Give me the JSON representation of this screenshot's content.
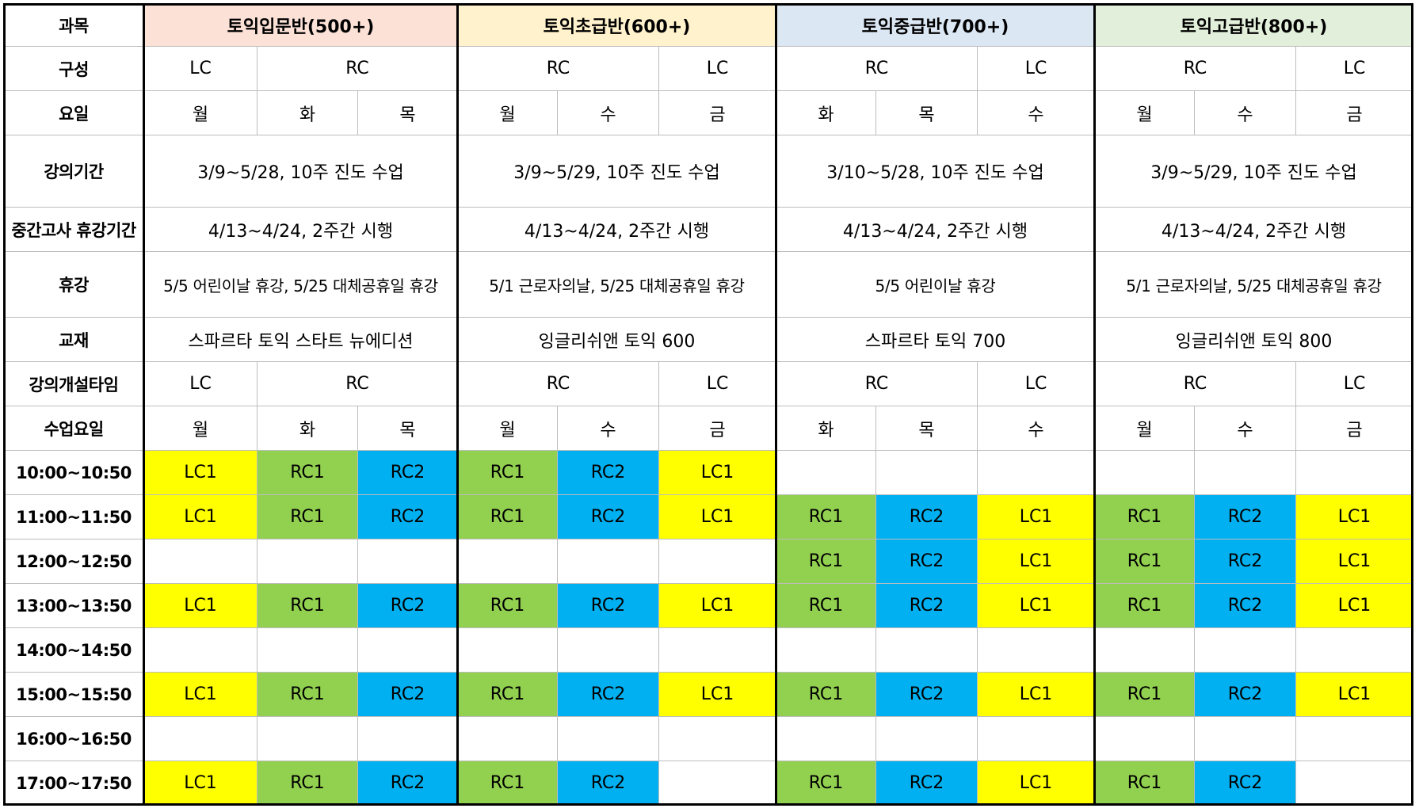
{
  "header": {
    "label": "과목",
    "groups": [
      {
        "title": "토익입문반(500+)",
        "color": "#fbe1d6"
      },
      {
        "title": "토익초급반(600+)",
        "color": "#fff2cc"
      },
      {
        "title": "토익중급반(700+)",
        "color": "#dce7f4"
      },
      {
        "title": "토익고급반(800+)",
        "color": "#e2efda"
      }
    ]
  },
  "rows": {
    "composition": {
      "label": "구성",
      "groups": [
        [
          {
            "text": "LC",
            "span": 1
          },
          {
            "text": "RC",
            "span": 2
          }
        ],
        [
          {
            "text": "RC",
            "span": 2
          },
          {
            "text": "LC",
            "span": 1
          }
        ],
        [
          {
            "text": "RC",
            "span": 2
          },
          {
            "text": "LC",
            "span": 1
          }
        ],
        [
          {
            "text": "RC",
            "span": 2
          },
          {
            "text": "LC",
            "span": 1
          }
        ]
      ]
    },
    "days": {
      "label": "요일",
      "values": [
        "월",
        "화",
        "목",
        "월",
        "수",
        "금",
        "화",
        "목",
        "수",
        "월",
        "수",
        "금"
      ]
    },
    "period": {
      "label": "강의기간",
      "values": [
        "3/9~5/28, 10주 진도 수업",
        "3/9~5/29, 10주 진도 수업",
        "3/10~5/28, 10주 진도 수업",
        "3/9~5/29, 10주 진도 수업"
      ]
    },
    "midterm": {
      "label": "중간고사 휴강기간",
      "values": [
        "4/13~4/24, 2주간 시행",
        "4/13~4/24, 2주간 시행",
        "4/13~4/24, 2주간 시행",
        "4/13~4/24, 2주간 시행"
      ]
    },
    "holiday": {
      "label": "휴강",
      "values": [
        "5/5 어린이날 휴강, 5/25 대체공휴일 휴강",
        "5/1 근로자의날, 5/25 대체공휴일 휴강",
        "5/5 어린이날 휴강",
        "5/1 근로자의날, 5/25 대체공휴일 휴강"
      ]
    },
    "textbook": {
      "label": "교재",
      "values": [
        "스파르타 토익 스타트 뉴에디션",
        "잉글리쉬앤 토익 600",
        "스파르타 토익 700",
        "잉글리쉬앤 토익 800"
      ]
    },
    "type": {
      "label": "강의개설타임",
      "groups": [
        [
          {
            "text": "LC",
            "span": 1
          },
          {
            "text": "RC",
            "span": 2
          }
        ],
        [
          {
            "text": "RC",
            "span": 2
          },
          {
            "text": "LC",
            "span": 1
          }
        ],
        [
          {
            "text": "RC",
            "span": 2
          },
          {
            "text": "LC",
            "span": 1
          }
        ],
        [
          {
            "text": "RC",
            "span": 2
          },
          {
            "text": "LC",
            "span": 1
          }
        ]
      ]
    },
    "class_days": {
      "label": "수업요일",
      "values": [
        "월",
        "화",
        "목",
        "월",
        "수",
        "금",
        "화",
        "목",
        "수",
        "월",
        "수",
        "금"
      ]
    }
  },
  "schedule": [
    {
      "time": "10:00~10:50",
      "cells": [
        "LC1",
        "RC1",
        "RC2",
        "RC1",
        "RC2",
        "LC1",
        "",
        "",
        "",
        "",
        "",
        ""
      ]
    },
    {
      "time": "11:00~11:50",
      "cells": [
        "LC1",
        "RC1",
        "RC2",
        "RC1",
        "RC2",
        "LC1",
        "RC1",
        "RC2",
        "LC1",
        "RC1",
        "RC2",
        "LC1"
      ]
    },
    {
      "time": "12:00~12:50",
      "cells": [
        "",
        "",
        "",
        "",
        "",
        "",
        "RC1",
        "RC2",
        "LC1",
        "RC1",
        "RC2",
        "LC1"
      ]
    },
    {
      "time": "13:00~13:50",
      "cells": [
        "LC1",
        "RC1",
        "RC2",
        "RC1",
        "RC2",
        "LC1",
        "RC1",
        "RC2",
        "LC1",
        "RC1",
        "RC2",
        "LC1"
      ]
    },
    {
      "time": "14:00~14:50",
      "cells": [
        "",
        "",
        "",
        "",
        "",
        "",
        "",
        "",
        "",
        "",
        "",
        ""
      ]
    },
    {
      "time": "15:00~15:50",
      "cells": [
        "LC1",
        "RC1",
        "RC2",
        "RC1",
        "RC2",
        "LC1",
        "RC1",
        "RC2",
        "LC1",
        "RC1",
        "RC2",
        "LC1"
      ]
    },
    {
      "time": "16:00~16:50",
      "cells": [
        "",
        "",
        "",
        "",
        "",
        "",
        "",
        "",
        "",
        "",
        "",
        ""
      ]
    },
    {
      "time": "17:00~17:50",
      "cells": [
        "LC1",
        "RC1",
        "RC2",
        "RC1",
        "RC2",
        "",
        "RC1",
        "RC2",
        "LC1",
        "RC1",
        "RC2",
        ""
      ]
    }
  ],
  "cell_colors": {
    "LC1": "#ffff00",
    "RC1": "#92d050",
    "RC2": "#00b0f0"
  }
}
